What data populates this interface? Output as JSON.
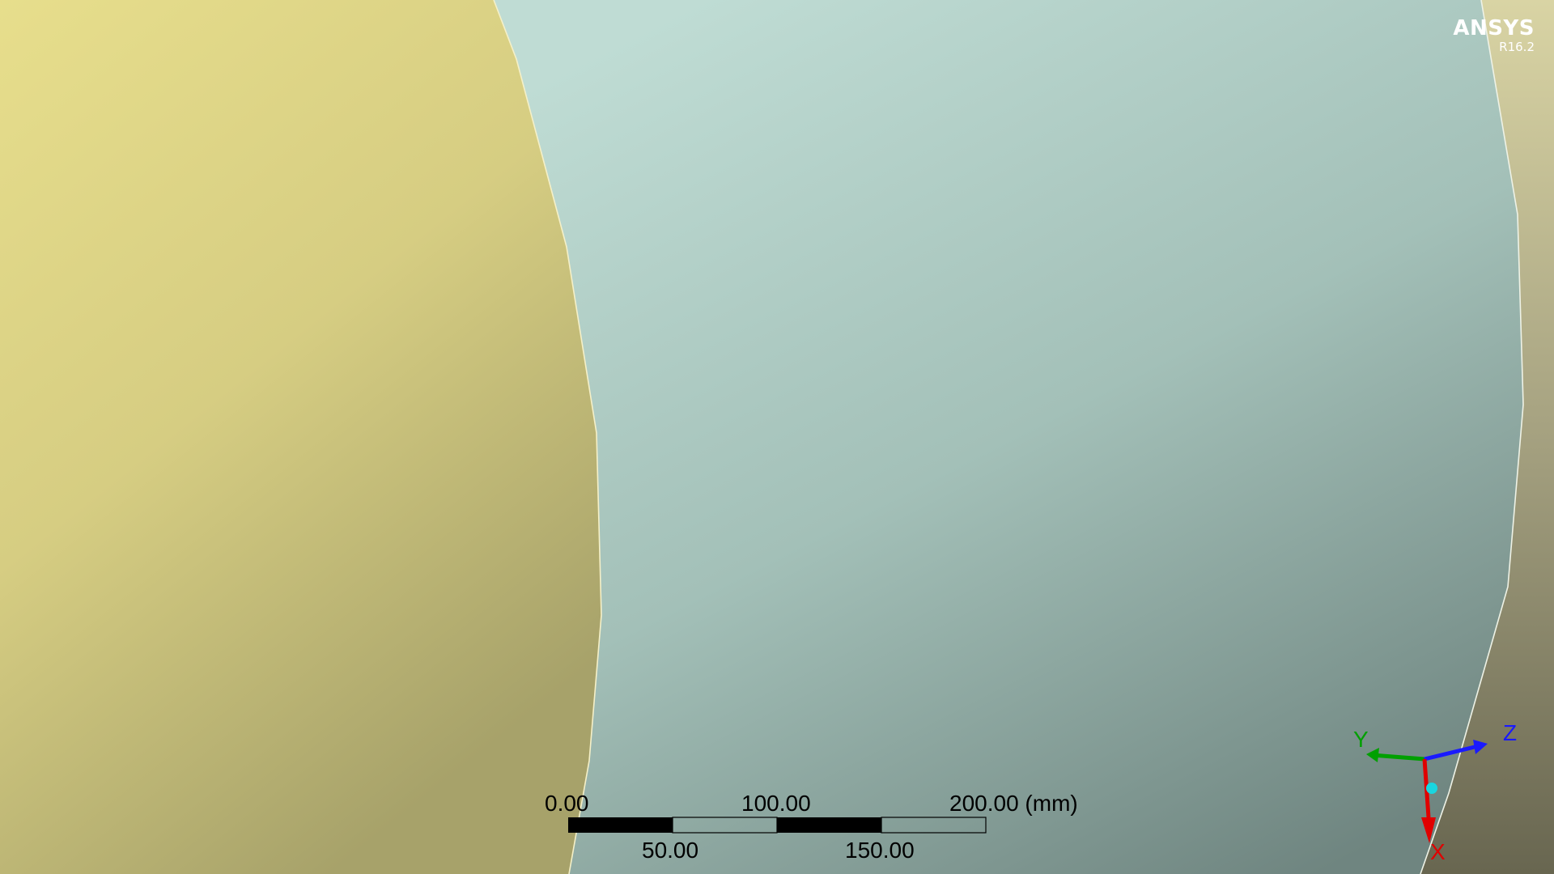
{
  "logo": {
    "brand": "ANSYS",
    "version": "R16.2"
  },
  "scale_bar": {
    "top_labels": [
      "0.00",
      "100.00",
      "200.00 (mm)"
    ],
    "bottom_labels": [
      "50.00",
      "150.00"
    ]
  },
  "triad": {
    "x_label": "X",
    "y_label": "Y",
    "z_label": "Z",
    "x_color": "#e00000",
    "y_color": "#00a000",
    "z_color": "#1a1aff",
    "origin_color": "#19d6e0"
  },
  "colors": {
    "body_yellow": "#d8cf86",
    "body_teal": "#a9c9c0",
    "edge": "#f5f0c8"
  }
}
